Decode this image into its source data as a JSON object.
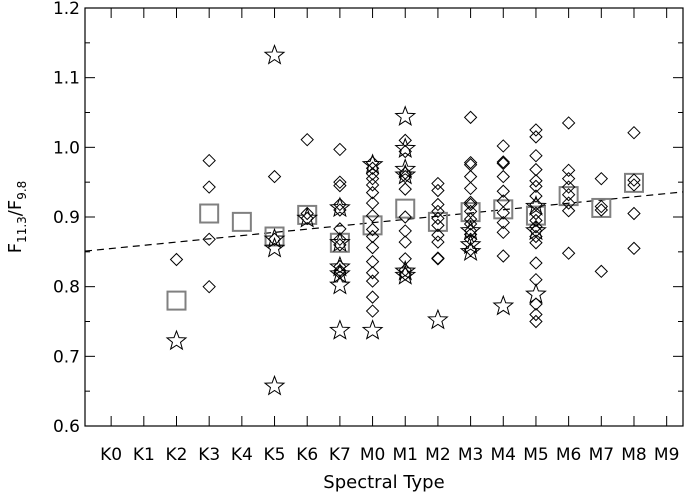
{
  "chart_data": {
    "type": "scatter",
    "xlabel": "Spectral Type",
    "ylabel": {
      "main": "F",
      "sub1": "11.3",
      "slash": "/F",
      "sub2": "9.8"
    },
    "x_categories": [
      "K0",
      "K1",
      "K2",
      "K3",
      "K4",
      "K5",
      "K6",
      "K7",
      "M0",
      "M1",
      "M2",
      "M3",
      "M4",
      "M5",
      "M6",
      "M7",
      "M8",
      "M9"
    ],
    "xlim": [
      -0.8,
      17.5
    ],
    "ylim": [
      0.6,
      1.2
    ],
    "y_ticks": [
      0.6,
      0.7,
      0.8,
      0.9,
      1.0,
      1.1,
      1.2
    ],
    "y_tick_labels": [
      "0.6",
      "0.7",
      "0.8",
      "0.9",
      "1.0",
      "1.1",
      "1.2"
    ],
    "colors": {
      "points": "#000000",
      "means": "#808080",
      "fit": "#000000"
    },
    "fit_line": {
      "style": "dashed",
      "x": [
        -0.8,
        17.5
      ],
      "y": [
        0.851,
        0.936
      ]
    },
    "series": [
      {
        "marker": "diamond",
        "points": [
          [
            2,
            0.839
          ],
          [
            3,
            0.981
          ],
          [
            3,
            0.943
          ],
          [
            3,
            0.868
          ],
          [
            3,
            0.8
          ],
          [
            5,
            0.958
          ],
          [
            5,
            0.868
          ],
          [
            6,
            1.011
          ],
          [
            6,
            0.905
          ],
          [
            6,
            0.898
          ],
          [
            7,
            0.997
          ],
          [
            7,
            0.95
          ],
          [
            7,
            0.945
          ],
          [
            7,
            0.918
          ],
          [
            7,
            0.91
          ],
          [
            7,
            0.883
          ],
          [
            7,
            0.868
          ],
          [
            7,
            0.86
          ],
          [
            7,
            0.829
          ],
          [
            7,
            0.823
          ],
          [
            7,
            0.82
          ],
          [
            8,
            0.978
          ],
          [
            8,
            0.97
          ],
          [
            8,
            0.962
          ],
          [
            8,
            0.955
          ],
          [
            8,
            0.946
          ],
          [
            8,
            0.935
          ],
          [
            8,
            0.92
          ],
          [
            8,
            0.902
          ],
          [
            8,
            0.882
          ],
          [
            8,
            0.872
          ],
          [
            8,
            0.856
          ],
          [
            8,
            0.836
          ],
          [
            8,
            0.82
          ],
          [
            8,
            0.808
          ],
          [
            8,
            0.785
          ],
          [
            8,
            0.765
          ],
          [
            9,
            1.01
          ],
          [
            9,
            0.994
          ],
          [
            9,
            0.963
          ],
          [
            9,
            0.958
          ],
          [
            9,
            0.94
          ],
          [
            9,
            0.9
          ],
          [
            9,
            0.88
          ],
          [
            9,
            0.864
          ],
          [
            9,
            0.84
          ],
          [
            9,
            0.824
          ],
          [
            9,
            0.818
          ],
          [
            10,
            0.948
          ],
          [
            10,
            0.938
          ],
          [
            10,
            0.918
          ],
          [
            10,
            0.908
          ],
          [
            10,
            0.898
          ],
          [
            10,
            0.888
          ],
          [
            10,
            0.874
          ],
          [
            10,
            0.864
          ],
          [
            10,
            0.841
          ],
          [
            10,
            0.84
          ],
          [
            11,
            1.043
          ],
          [
            11,
            0.978
          ],
          [
            11,
            0.975
          ],
          [
            11,
            0.958
          ],
          [
            11,
            0.941
          ],
          [
            11,
            0.921
          ],
          [
            11,
            0.918
          ],
          [
            11,
            0.908
          ],
          [
            11,
            0.897
          ],
          [
            11,
            0.89
          ],
          [
            11,
            0.88
          ],
          [
            11,
            0.875
          ],
          [
            11,
            0.868
          ],
          [
            11,
            0.853
          ],
          [
            12,
            1.002
          ],
          [
            12,
            0.979
          ],
          [
            12,
            0.977
          ],
          [
            12,
            0.958
          ],
          [
            12,
            0.937
          ],
          [
            12,
            0.923
          ],
          [
            12,
            0.906
          ],
          [
            12,
            0.892
          ],
          [
            12,
            0.878
          ],
          [
            12,
            0.844
          ],
          [
            13,
            1.025
          ],
          [
            13,
            1.015
          ],
          [
            13,
            0.988
          ],
          [
            13,
            0.968
          ],
          [
            13,
            0.952
          ],
          [
            13,
            0.944
          ],
          [
            13,
            0.93
          ],
          [
            13,
            0.918
          ],
          [
            13,
            0.905
          ],
          [
            13,
            0.895
          ],
          [
            13,
            0.886
          ],
          [
            13,
            0.88
          ],
          [
            13,
            0.872
          ],
          [
            13,
            0.863
          ],
          [
            13,
            0.834
          ],
          [
            13,
            0.81
          ],
          [
            13,
            0.775
          ],
          [
            13,
            0.76
          ],
          [
            13,
            0.75
          ],
          [
            14,
            1.035
          ],
          [
            14,
            0.967
          ],
          [
            14,
            0.955
          ],
          [
            14,
            0.943
          ],
          [
            14,
            0.932
          ],
          [
            14,
            0.92
          ],
          [
            14,
            0.909
          ],
          [
            14,
            0.848
          ],
          [
            15,
            0.955
          ],
          [
            15,
            0.915
          ],
          [
            15,
            0.91
          ],
          [
            15,
            0.822
          ],
          [
            16,
            1.021
          ],
          [
            16,
            0.953
          ],
          [
            16,
            0.946
          ],
          [
            16,
            0.905
          ],
          [
            16,
            0.855
          ]
        ]
      },
      {
        "marker": "star",
        "points": [
          [
            2,
            0.722
          ],
          [
            5,
            1.132
          ],
          [
            5,
            0.868
          ],
          [
            5,
            0.855
          ],
          [
            5,
            0.657
          ],
          [
            6,
            0.898
          ],
          [
            7,
            0.913
          ],
          [
            7,
            0.863
          ],
          [
            7,
            0.828
          ],
          [
            7,
            0.818
          ],
          [
            7,
            0.802
          ],
          [
            7,
            0.737
          ],
          [
            8,
            0.975
          ],
          [
            8,
            0.737
          ],
          [
            9,
            1.044
          ],
          [
            9,
            0.998
          ],
          [
            9,
            0.968
          ],
          [
            9,
            0.96
          ],
          [
            9,
            0.822
          ],
          [
            9,
            0.816
          ],
          [
            10,
            0.752
          ],
          [
            11,
            0.88
          ],
          [
            11,
            0.86
          ],
          [
            11,
            0.85
          ],
          [
            12,
            0.772
          ],
          [
            13,
            0.915
          ],
          [
            13,
            0.88
          ],
          [
            13,
            0.789
          ]
        ]
      },
      {
        "marker": "square",
        "points": [
          [
            2,
            0.78
          ],
          [
            3,
            0.905
          ],
          [
            4,
            0.893
          ],
          [
            5,
            0.872
          ],
          [
            6,
            0.903
          ],
          [
            7,
            0.863
          ],
          [
            8,
            0.888
          ],
          [
            9,
            0.912
          ],
          [
            10,
            0.893
          ],
          [
            11,
            0.907
          ],
          [
            12,
            0.911
          ],
          [
            13,
            0.902
          ],
          [
            14,
            0.93
          ],
          [
            15,
            0.913
          ],
          [
            16,
            0.949
          ]
        ]
      }
    ]
  }
}
